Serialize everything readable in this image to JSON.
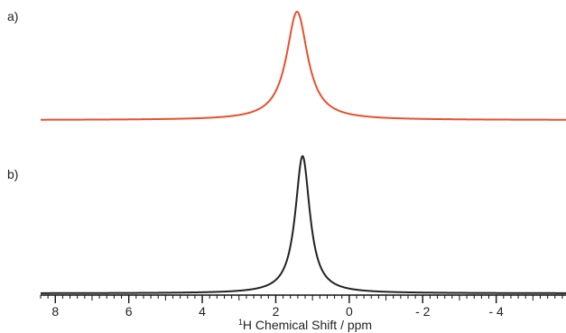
{
  "chart_data": {
    "type": "line",
    "xlabel_sup": "1",
    "xlabel_main": "H Chemical Shift / ppm",
    "xlim": [
      8.4,
      -5.9
    ],
    "x_reversed": true,
    "x_ticks": [
      {
        "value": 8,
        "label": "8"
      },
      {
        "value": 6,
        "label": "6"
      },
      {
        "value": 4,
        "label": "4"
      },
      {
        "value": 2,
        "label": "2"
      },
      {
        "value": 0,
        "label": "0"
      },
      {
        "value": -2,
        "label": "- 2"
      },
      {
        "value": -4,
        "label": "- 4"
      }
    ],
    "minor_tick_step": 0.2,
    "grid": false,
    "panels": [
      {
        "label": "a)",
        "color": "#e8502e",
        "peak_center_ppm": 1.42,
        "peak_height": 1.0,
        "half_width_ppm": 0.35,
        "baseline": 0.0
      },
      {
        "label": "b)",
        "color": "#222222",
        "peak_center_ppm": 1.27,
        "peak_height": 1.0,
        "half_width_ppm": 0.24,
        "baseline": 0.0
      }
    ]
  }
}
